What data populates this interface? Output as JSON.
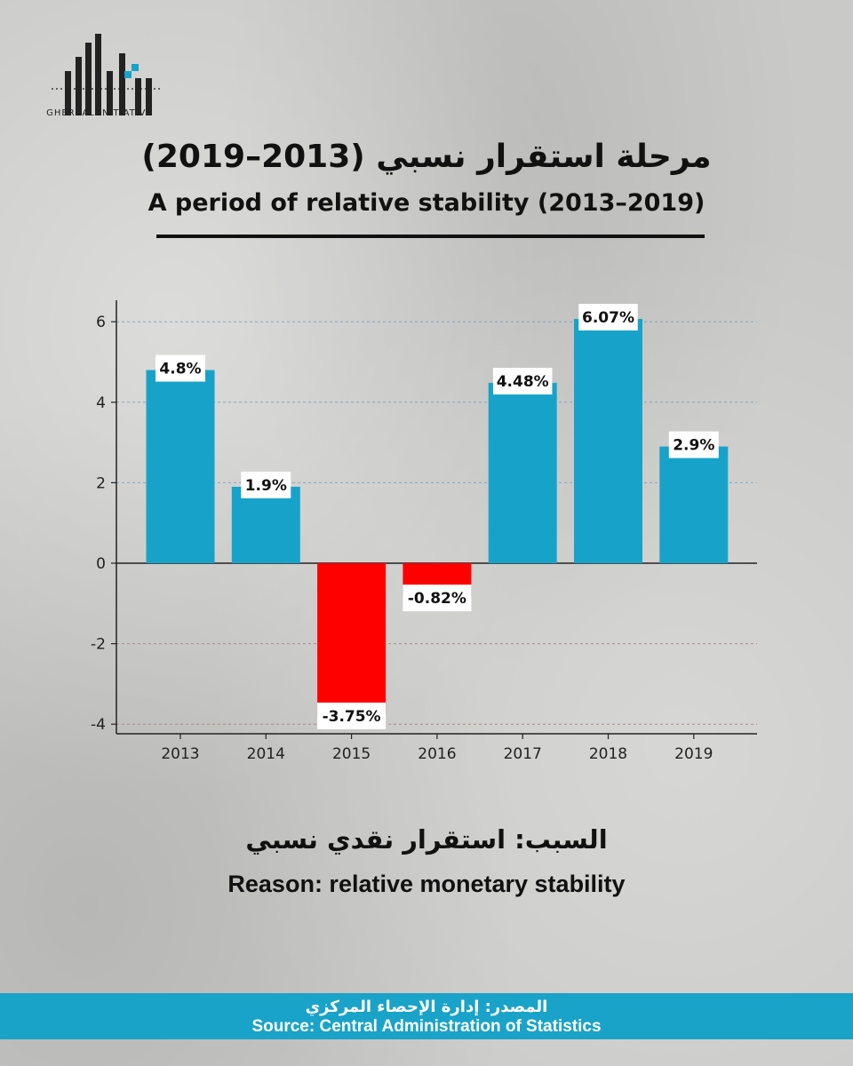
{
  "logo": {
    "text": "GHERBAL INITIATIVE"
  },
  "header": {
    "title_ar": "مرحلة استقرار نسبي (2013–2019)",
    "title_en": "A period of relative stability (2013–2019)"
  },
  "chart_data": {
    "type": "bar",
    "categories": [
      "2013",
      "2014",
      "2015",
      "2016",
      "2017",
      "2018",
      "2019"
    ],
    "values": [
      4.8,
      1.9,
      -3.75,
      -0.82,
      4.48,
      6.07,
      2.9
    ],
    "data_labels": [
      "4.8%",
      "1.9%",
      "-3.75%",
      "-0.82%",
      "4.48%",
      "6.07%",
      "2.9%"
    ],
    "yticks": [
      "-4",
      "-2",
      "0",
      "2",
      "4",
      "6"
    ],
    "ytick_values": [
      -4,
      -2,
      0,
      2,
      4,
      6
    ],
    "ylim": [
      -4.2,
      6.5
    ],
    "grid": true,
    "colors": {
      "positive": "#17a3c9",
      "negative": "#ff0000"
    }
  },
  "reason": {
    "ar": "السبب: استقرار نقدي نسبي",
    "en": "Reason: relative monetary stability"
  },
  "footer": {
    "source_ar": "المصدر: إدارة الإحصاء المركزي",
    "source_en": "Source: Central Administration of Statistics"
  }
}
